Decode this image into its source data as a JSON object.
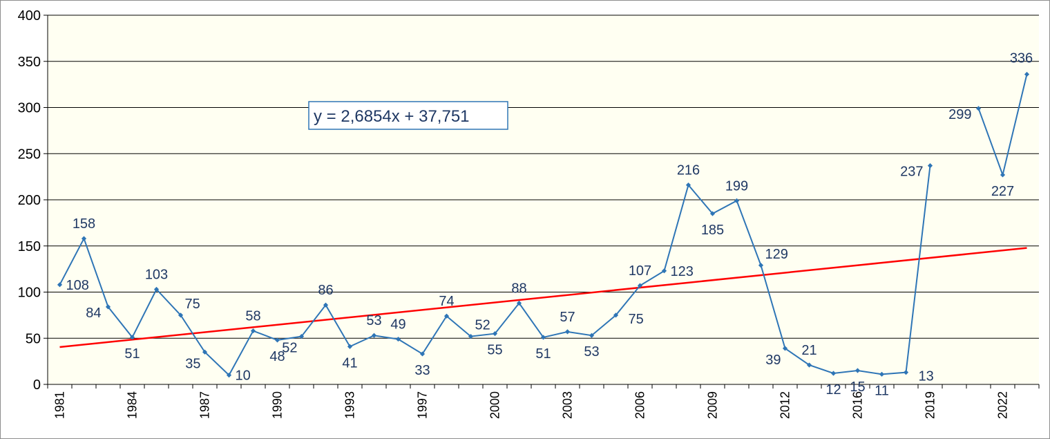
{
  "chart_data": {
    "type": "line",
    "title": "",
    "xlabel": "",
    "ylabel": "",
    "ylim": [
      0,
      400
    ],
    "yticks": [
      0,
      50,
      100,
      150,
      200,
      250,
      300,
      350,
      400
    ],
    "grid": true,
    "x_tick_labels": [
      "1981",
      "1984",
      "1987",
      "1990",
      "1993",
      "1997",
      "2000",
      "2003",
      "2006",
      "2009",
      "2012",
      "2016",
      "2019",
      "2022"
    ],
    "series": [
      {
        "name": "",
        "color": "#2e75b6",
        "values": [
          108,
          158,
          84,
          51,
          103,
          75,
          35,
          10,
          58,
          48,
          52,
          86,
          41,
          53,
          49,
          33,
          74,
          52,
          55,
          88,
          51,
          57,
          53,
          75,
          107,
          123,
          216,
          185,
          199,
          129,
          39,
          21,
          12,
          15,
          11,
          13,
          237,
          null,
          299,
          227,
          336
        ]
      }
    ],
    "trendline": {
      "color": "#ff0000",
      "slope": 2.6854,
      "intercept": 37.751,
      "equation": "y = 2,6854x + 37,751"
    },
    "colors": {
      "plot_background": "#fffff2",
      "gridline": "#000000",
      "data_label": "#1f3864",
      "equation_border": "#2e75b6"
    }
  }
}
